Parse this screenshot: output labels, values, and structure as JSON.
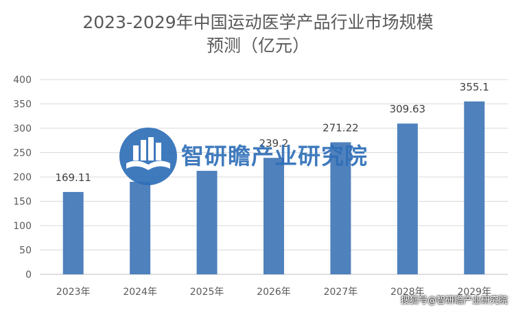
{
  "chart_data": {
    "type": "bar",
    "title_line_1": "2023-2029年中国运动医学产品行业市场规模",
    "title_line_2": "预测（亿元）",
    "categories": [
      "2023年",
      "2024年",
      "2025年",
      "2026年",
      "2027年",
      "2028年",
      "2029年"
    ],
    "values": [
      169.11,
      190.15,
      212.54,
      239.2,
      271.22,
      309.63,
      355.1
    ],
    "data_labels": [
      "169.11",
      "",
      "",
      "239.2",
      "271.22",
      "309.63",
      "355.1"
    ],
    "ylim": [
      0,
      400
    ],
    "yticks": [
      0,
      50,
      100,
      150,
      200,
      250,
      300,
      350,
      400
    ],
    "grid": true,
    "bar_color": "#4f81bd"
  },
  "watermark": {
    "text": "智研瞻产业研究院",
    "logo": "building-book-logo-icon"
  },
  "footer": {
    "text": "搜狐号@智研瞻产业研究院"
  }
}
